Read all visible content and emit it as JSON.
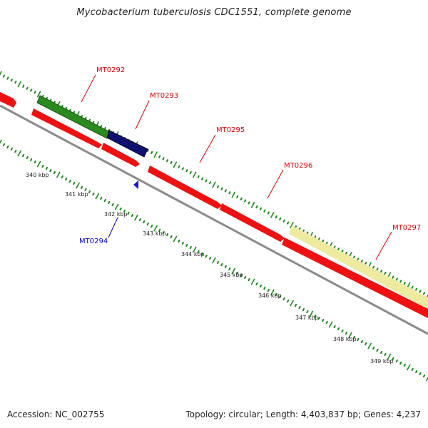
{
  "title": "Mycobacterium tuberculosis CDC1551, complete genome",
  "footer": {
    "accession": "Accession: NC_002755",
    "topology": "Topology: circular; Length: 4,403,837 bp; Genes: 4,237"
  },
  "colors": {
    "forward_gene": "#ee1111",
    "green_feature": "#2a8a1f",
    "navy_feature": "#101070",
    "yellow_feature": "#eeeba0",
    "backbone": "#8a8a8a",
    "tick_green": "#1a8a1a",
    "label_red": "#dd0000",
    "label_blue": "#0000cc"
  },
  "ticks": {
    "labels": [
      "340 kbp",
      "341 kbp",
      "342 kbp",
      "343 kbp",
      "344 kbp",
      "345 kbp",
      "346 kbp",
      "347 kbp",
      "348 kbp",
      "349 kbp"
    ]
  },
  "genes": {
    "labels": [
      {
        "text": "MT0292",
        "strand": "forward"
      },
      {
        "text": "MT0293",
        "strand": "forward"
      },
      {
        "text": "MT0295",
        "strand": "forward"
      },
      {
        "text": "MT0296",
        "strand": "forward"
      },
      {
        "text": "MT0297",
        "strand": "forward"
      },
      {
        "text": "MT0294",
        "strand": "reverse"
      }
    ]
  }
}
